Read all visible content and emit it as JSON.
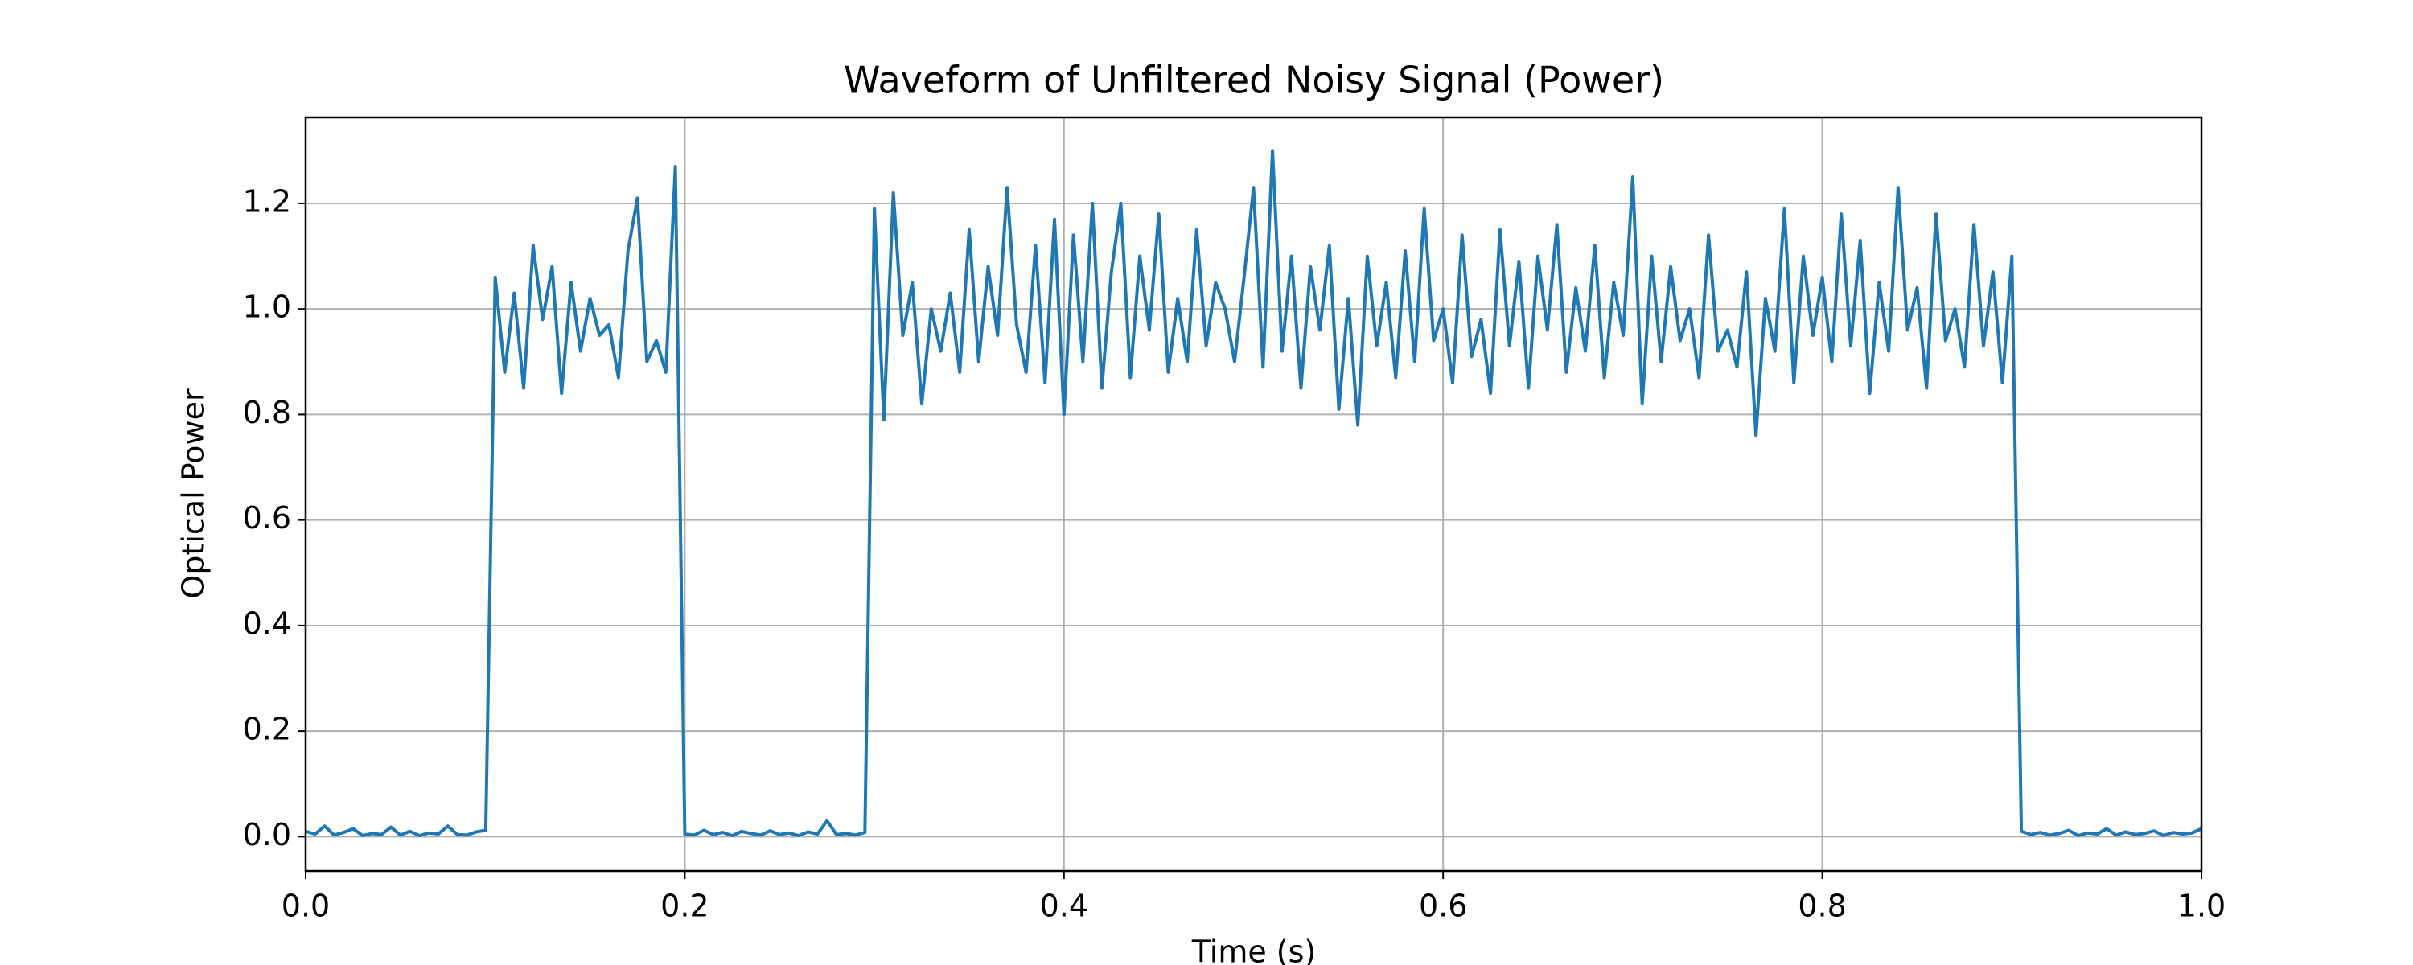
{
  "chart_data": {
    "type": "line",
    "title": "Waveform of Unfiltered Noisy Signal (Power)",
    "x_label": "Time (s)",
    "y_label": "Optical Power",
    "color": "#1f77b4",
    "grid": true,
    "xlim": [
      0,
      1
    ],
    "ylim": [
      -0.065,
      1.363
    ],
    "xticks": [
      {
        "value": 0,
        "label": "0.0"
      },
      0.2,
      0.4,
      0.6,
      0.8,
      {
        "value": 1,
        "label": "1.0"
      }
    ],
    "yticks": [
      {
        "value": 0,
        "label": "0.0"
      },
      0.2,
      0.4,
      0.6,
      0.8,
      {
        "value": 1,
        "label": "1.0"
      },
      1.2
    ],
    "x": [
      0,
      0.005,
      0.01,
      0.015,
      0.02,
      0.025,
      0.03,
      0.035,
      0.04,
      0.045,
      0.05,
      0.055,
      0.06,
      0.065,
      0.07,
      0.075,
      0.08,
      0.085,
      0.09,
      0.095,
      0.1,
      0.105,
      0.11,
      0.115,
      0.12,
      0.125,
      0.13,
      0.135,
      0.14,
      0.145,
      0.15,
      0.155,
      0.16,
      0.165,
      0.17,
      0.175,
      0.18,
      0.185,
      0.19,
      0.195,
      0.2,
      0.205,
      0.21,
      0.215,
      0.22,
      0.225,
      0.23,
      0.235,
      0.24,
      0.245,
      0.25,
      0.255,
      0.26,
      0.265,
      0.27,
      0.275,
      0.28,
      0.285,
      0.29,
      0.295,
      0.3,
      0.305,
      0.31,
      0.315,
      0.32,
      0.325,
      0.33,
      0.335,
      0.34,
      0.345,
      0.35,
      0.355,
      0.36,
      0.365,
      0.37,
      0.375,
      0.38,
      0.385,
      0.39,
      0.395,
      0.4,
      0.405,
      0.41,
      0.415,
      0.42,
      0.425,
      0.43,
      0.435,
      0.44,
      0.445,
      0.45,
      0.455,
      0.46,
      0.465,
      0.47,
      0.475,
      0.48,
      0.485,
      0.49,
      0.495,
      0.5,
      0.505,
      0.51,
      0.515,
      0.52,
      0.525,
      0.53,
      0.535,
      0.54,
      0.545,
      0.55,
      0.555,
      0.56,
      0.565,
      0.57,
      0.575,
      0.58,
      0.585,
      0.59,
      0.595,
      0.6,
      0.605,
      0.61,
      0.615,
      0.62,
      0.625,
      0.63,
      0.635,
      0.64,
      0.645,
      0.65,
      0.655,
      0.66,
      0.665,
      0.67,
      0.675,
      0.68,
      0.685,
      0.69,
      0.695,
      0.7,
      0.705,
      0.71,
      0.715,
      0.72,
      0.725,
      0.73,
      0.735,
      0.74,
      0.745,
      0.75,
      0.755,
      0.76,
      0.765,
      0.77,
      0.775,
      0.78,
      0.785,
      0.79,
      0.795,
      0.8,
      0.805,
      0.81,
      0.815,
      0.82,
      0.825,
      0.83,
      0.835,
      0.84,
      0.845,
      0.85,
      0.855,
      0.86,
      0.865,
      0.87,
      0.875,
      0.88,
      0.885,
      0.89,
      0.895,
      0.9,
      0.905,
      0.91,
      0.915,
      0.92,
      0.925,
      0.93,
      0.935,
      0.94,
      0.945,
      0.95,
      0.955,
      0.96,
      0.965,
      0.97,
      0.975,
      0.98,
      0.985,
      0.99,
      0.995,
      1
    ],
    "values": [
      0.01,
      0.005,
      0.02,
      0.003,
      0.008,
      0.015,
      0.002,
      0.006,
      0.004,
      0.018,
      0.003,
      0.01,
      0.002,
      0.007,
      0.005,
      0.02,
      0.004,
      0.003,
      0.009,
      0.012,
      1.06,
      0.88,
      1.03,
      0.85,
      1.12,
      0.98,
      1.08,
      0.84,
      1.05,
      0.92,
      1.02,
      0.95,
      0.97,
      0.87,
      1.11,
      1.21,
      0.9,
      0.94,
      0.88,
      1.27,
      0.005,
      0.003,
      0.012,
      0.004,
      0.008,
      0.002,
      0.01,
      0.006,
      0.003,
      0.011,
      0.004,
      0.007,
      0.002,
      0.009,
      0.005,
      0.03,
      0.004,
      0.006,
      0.003,
      0.008,
      1.19,
      0.79,
      1.22,
      0.95,
      1.05,
      0.82,
      1.0,
      0.92,
      1.03,
      0.88,
      1.15,
      0.9,
      1.08,
      0.95,
      1.23,
      0.97,
      0.88,
      1.12,
      0.86,
      1.17,
      0.8,
      1.14,
      0.9,
      1.2,
      0.85,
      1.07,
      1.2,
      0.87,
      1.1,
      0.96,
      1.18,
      0.88,
      1.02,
      0.9,
      1.15,
      0.93,
      1.05,
      1.0,
      0.9,
      1.06,
      1.23,
      0.89,
      1.3,
      0.92,
      1.1,
      0.85,
      1.08,
      0.96,
      1.12,
      0.81,
      1.02,
      0.78,
      1.1,
      0.93,
      1.05,
      0.87,
      1.11,
      0.9,
      1.19,
      0.94,
      1.0,
      0.86,
      1.14,
      0.91,
      0.98,
      0.84,
      1.15,
      0.93,
      1.09,
      0.85,
      1.1,
      0.96,
      1.16,
      0.88,
      1.04,
      0.92,
      1.12,
      0.87,
      1.05,
      0.95,
      1.25,
      0.82,
      1.1,
      0.9,
      1.08,
      0.94,
      1.0,
      0.87,
      1.14,
      0.92,
      0.96,
      0.89,
      1.07,
      0.76,
      1.02,
      0.92,
      1.19,
      0.86,
      1.1,
      0.95,
      1.06,
      0.9,
      1.18,
      0.93,
      1.13,
      0.84,
      1.05,
      0.92,
      1.23,
      0.96,
      1.04,
      0.85,
      1.18,
      0.94,
      1.0,
      0.89,
      1.16,
      0.93,
      1.07,
      0.86,
      1.1,
      0.01,
      0.004,
      0.008,
      0.003,
      0.006,
      0.012,
      0.002,
      0.007,
      0.005,
      0.015,
      0.003,
      0.009,
      0.004,
      0.006,
      0.011,
      0.002,
      0.008,
      0.005,
      0.007,
      0.015
    ]
  }
}
